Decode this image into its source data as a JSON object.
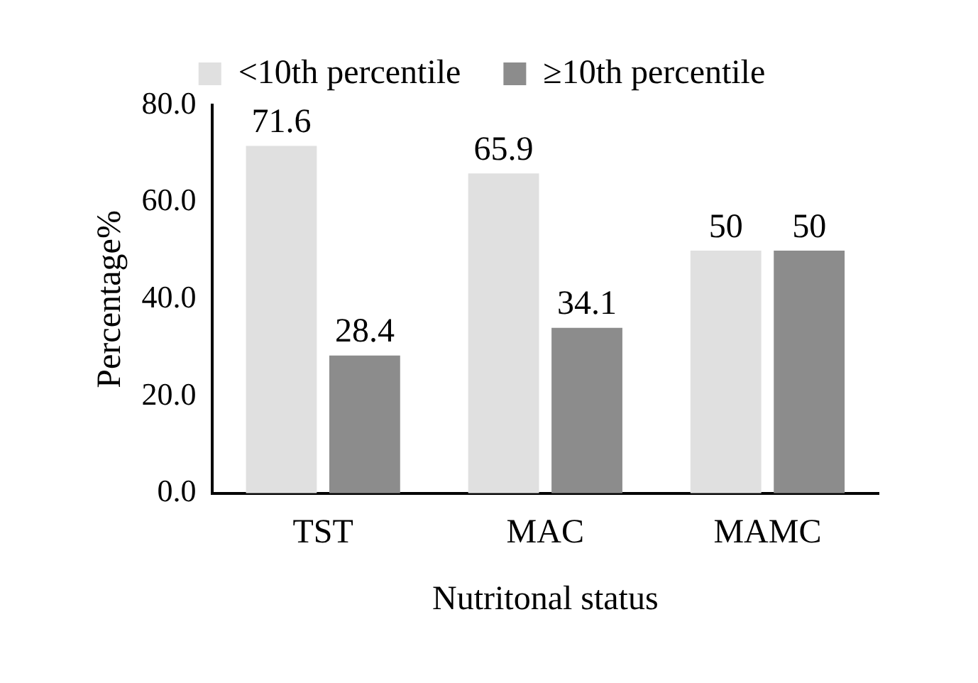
{
  "chart_data": {
    "type": "bar",
    "xlabel": "Nutritonal status",
    "ylabel": "Percentage%",
    "categories": [
      "TST",
      "MAC",
      "MAMC"
    ],
    "series": [
      {
        "name": "<10th percentile",
        "color": "#e0e0e0",
        "values": [
          71.6,
          65.9,
          50
        ]
      },
      {
        "name": "≥10th percentile",
        "color": "#8c8c8c",
        "values": [
          28.4,
          34.1,
          50
        ]
      }
    ],
    "ylim": [
      0,
      80
    ],
    "yticks": [
      {
        "value": 0,
        "label": "0.0"
      },
      {
        "value": 20,
        "label": "20.0"
      },
      {
        "value": 40,
        "label": "40.0"
      },
      {
        "value": 60,
        "label": "60.0"
      },
      {
        "value": 80,
        "label": "80.0"
      }
    ],
    "grid": false,
    "legend": "top",
    "data_labels": true
  }
}
